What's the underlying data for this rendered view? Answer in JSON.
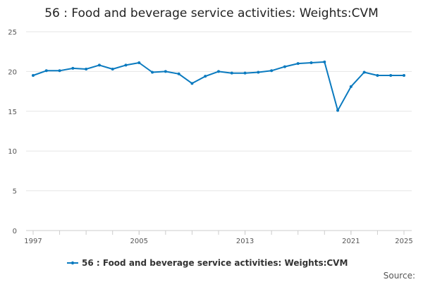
{
  "chart_data": {
    "type": "line",
    "title": "56 : Food and beverage service activities: Weights:CVM",
    "xlabel": "",
    "ylabel": "",
    "ylim": [
      0,
      25
    ],
    "yticks": [
      0,
      5,
      10,
      15,
      20,
      25
    ],
    "xlim": [
      1997,
      2025
    ],
    "xtick_labels": [
      "1997",
      "2005",
      "2013",
      "2021",
      "2025"
    ],
    "xtick_values": [
      1997,
      2005,
      2013,
      2021,
      2025
    ],
    "grid": true,
    "legend_position": "bottom",
    "series": [
      {
        "name": "56 : Food and beverage service activities: Weights:CVM",
        "color": "#1f77b4",
        "x": [
          1997,
          1998,
          1999,
          2000,
          2001,
          2002,
          2003,
          2004,
          2005,
          2006,
          2007,
          2008,
          2009,
          2010,
          2011,
          2012,
          2013,
          2014,
          2015,
          2016,
          2017,
          2018,
          2019,
          2020,
          2021,
          2022,
          2023,
          2024,
          2025
        ],
        "values": [
          19.5,
          20.1,
          20.1,
          20.4,
          20.3,
          20.8,
          20.3,
          20.8,
          21.1,
          19.9,
          20.0,
          19.7,
          18.5,
          19.4,
          20.0,
          19.8,
          19.8,
          19.9,
          20.1,
          20.6,
          21.0,
          21.1,
          21.2,
          15.1,
          18.1,
          19.9,
          19.5,
          19.5,
          19.5
        ]
      }
    ]
  },
  "source_label": "Source:",
  "colors": {
    "line": "#0a7abf",
    "grid": "#e6e6e6",
    "axis": "#cccccc"
  }
}
